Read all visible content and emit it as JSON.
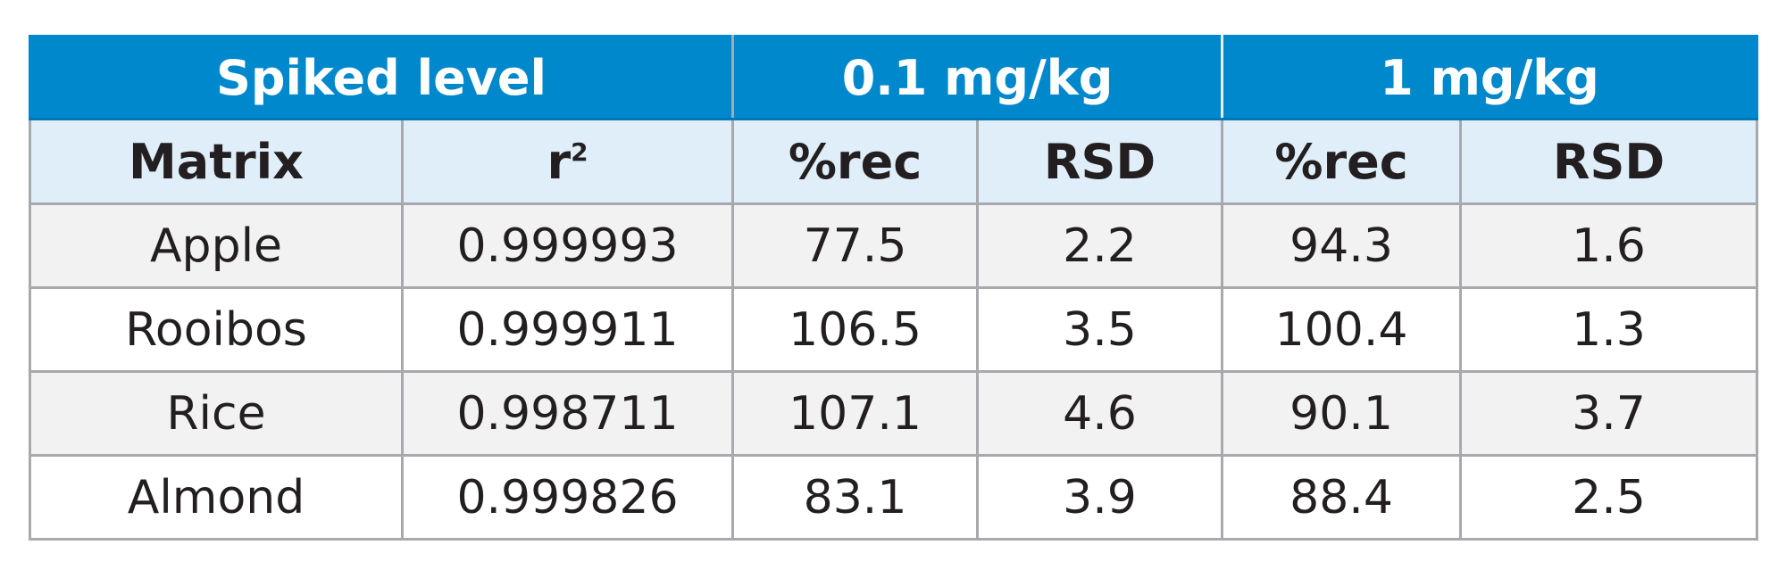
{
  "table": {
    "header_levels": [
      {
        "label": "Spiked level",
        "colspan": 2
      },
      {
        "label": "0.1 mg/kg",
        "colspan": 2
      },
      {
        "label": "1 mg/kg",
        "colspan": 2
      }
    ],
    "sub_headers": {
      "matrix": "Matrix",
      "r_base": "r",
      "r_sup": "2",
      "rec_01": "%rec",
      "rsd_01": "RSD",
      "rec_1": "%rec",
      "rsd_1": "RSD"
    },
    "rows": [
      {
        "matrix": "Apple",
        "r2": "0.999993",
        "rec_01": "77.5",
        "rsd_01": "2.2",
        "rec_1": "94.3",
        "rsd_1": "1.6"
      },
      {
        "matrix": "Rooibos",
        "r2": "0.999911",
        "rec_01": "106.5",
        "rsd_01": "3.5",
        "rec_1": "100.4",
        "rsd_1": "1.3"
      },
      {
        "matrix": "Rice",
        "r2": "0.998711",
        "rec_01": "107.1",
        "rsd_01": "4.6",
        "rec_1": "90.1",
        "rsd_1": "3.7"
      },
      {
        "matrix": "Almond",
        "r2": "0.999826",
        "rec_01": "83.1",
        "rsd_01": "3.9",
        "rec_1": "88.4",
        "rsd_1": "2.5"
      }
    ]
  },
  "colors": {
    "header_blue": "#0088cc",
    "subheader_bg": "#e0eef9",
    "row_alt_bg": "#f2f2f3",
    "grid": "#a7a9ac"
  }
}
